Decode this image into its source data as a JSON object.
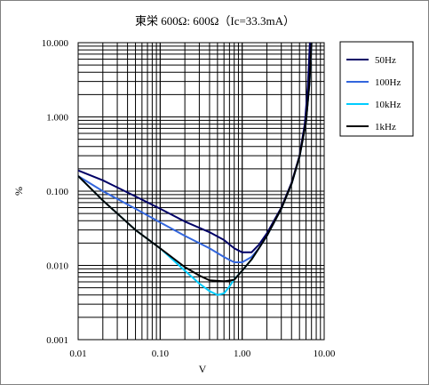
{
  "chart_data": {
    "type": "line",
    "title": "東栄 600Ω: 600Ω（Ic=33.3mA）",
    "xlabel": "V",
    "ylabel": "%",
    "x_scale": "log",
    "y_scale": "log",
    "xlim": [
      0.01,
      10
    ],
    "ylim": [
      0.001,
      10
    ],
    "x_tick_labels": [
      "0.01",
      "0.10",
      "1.00",
      "10.00"
    ],
    "y_tick_labels": [
      "0.001",
      "0.010",
      "0.100",
      "1.000",
      "10.000"
    ],
    "grid": true,
    "legend_position": "right",
    "series": [
      {
        "name": "50Hz",
        "color": "#000066",
        "points": [
          [
            0.01,
            0.19
          ],
          [
            0.02,
            0.14
          ],
          [
            0.05,
            0.085
          ],
          [
            0.1,
            0.058
          ],
          [
            0.2,
            0.039
          ],
          [
            0.4,
            0.028
          ],
          [
            0.6,
            0.022
          ],
          [
            0.8,
            0.017
          ],
          [
            1.0,
            0.015
          ],
          [
            1.3,
            0.015
          ],
          [
            1.6,
            0.019
          ],
          [
            2.0,
            0.027
          ],
          [
            3.0,
            0.06
          ],
          [
            4.0,
            0.13
          ],
          [
            5.0,
            0.3
          ],
          [
            5.8,
            0.8
          ],
          [
            6.3,
            2.5
          ],
          [
            6.7,
            10
          ]
        ]
      },
      {
        "name": "100Hz",
        "color": "#3366dd",
        "points": [
          [
            0.01,
            0.16
          ],
          [
            0.02,
            0.1
          ],
          [
            0.05,
            0.058
          ],
          [
            0.1,
            0.038
          ],
          [
            0.2,
            0.025
          ],
          [
            0.4,
            0.017
          ],
          [
            0.6,
            0.013
          ],
          [
            0.8,
            0.011
          ],
          [
            1.0,
            0.011
          ],
          [
            1.3,
            0.013
          ],
          [
            1.6,
            0.017
          ],
          [
            2.0,
            0.025
          ],
          [
            3.0,
            0.058
          ],
          [
            4.0,
            0.125
          ],
          [
            5.0,
            0.29
          ],
          [
            6.0,
            0.85
          ],
          [
            6.6,
            2.8
          ],
          [
            7.0,
            10
          ]
        ]
      },
      {
        "name": "10kHz",
        "color": "#00ccff",
        "points": [
          [
            0.01,
            0.16
          ],
          [
            0.02,
            0.075
          ],
          [
            0.05,
            0.03
          ],
          [
            0.1,
            0.017
          ],
          [
            0.2,
            0.0085
          ],
          [
            0.3,
            0.0057
          ],
          [
            0.4,
            0.0045
          ],
          [
            0.5,
            0.004
          ],
          [
            0.6,
            0.0042
          ],
          [
            0.7,
            0.0052
          ],
          [
            0.8,
            0.0065
          ],
          [
            1.0,
            0.0085
          ],
          [
            1.3,
            0.012
          ],
          [
            1.6,
            0.017
          ],
          [
            2.0,
            0.025
          ],
          [
            3.0,
            0.058
          ],
          [
            4.0,
            0.125
          ],
          [
            5.0,
            0.29
          ],
          [
            6.0,
            0.85
          ],
          [
            6.6,
            2.8
          ],
          [
            7.0,
            10
          ]
        ]
      },
      {
        "name": "1kHz",
        "color": "#000000",
        "points": [
          [
            0.01,
            0.16
          ],
          [
            0.02,
            0.075
          ],
          [
            0.05,
            0.03
          ],
          [
            0.1,
            0.017
          ],
          [
            0.2,
            0.0095
          ],
          [
            0.3,
            0.0073
          ],
          [
            0.4,
            0.0063
          ],
          [
            0.6,
            0.0061
          ],
          [
            0.8,
            0.0064
          ],
          [
            1.0,
            0.0085
          ],
          [
            1.3,
            0.012
          ],
          [
            1.6,
            0.017
          ],
          [
            2.0,
            0.025
          ],
          [
            3.0,
            0.058
          ],
          [
            4.0,
            0.125
          ],
          [
            5.0,
            0.29
          ],
          [
            6.0,
            0.85
          ],
          [
            6.6,
            2.8
          ],
          [
            7.0,
            10
          ]
        ]
      }
    ]
  }
}
